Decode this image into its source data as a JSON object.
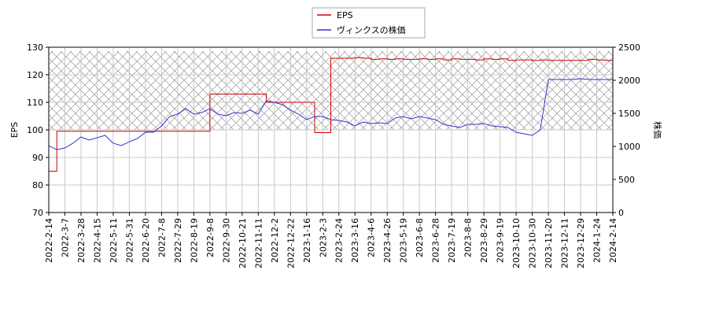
{
  "chart_data": {
    "type": "line",
    "categories": [
      "2022-2-14",
      null,
      "2022-3-7",
      null,
      "2022-3-28",
      null,
      "2022-4-15",
      null,
      "2022-5-11",
      null,
      "2022-5-31",
      null,
      "2022-6-20",
      null,
      "2022-7-8",
      null,
      "2022-7-29",
      null,
      "2022-8-19",
      null,
      "2022-9-8",
      null,
      "2022-9-30",
      null,
      "2022-10-21",
      null,
      "2022-11-11",
      null,
      "2022-12-2",
      null,
      "2022-12-22",
      null,
      "2023-1-16",
      null,
      "2023-2-3",
      null,
      "2023-2-24",
      null,
      "2023-3-16",
      null,
      "2023-4-6",
      null,
      "2023-4-26",
      null,
      "2023-5-19",
      null,
      "2023-6-8",
      null,
      "2023-6-28",
      null,
      "2023-7-19",
      null,
      "2023-8-8",
      null,
      "2023-8-29",
      null,
      "2023-9-19",
      null,
      "2023-10-10",
      null,
      "2023-10-30",
      null,
      "2023-11-20",
      null,
      "2023-12-11",
      null,
      "2023-12-29",
      null,
      "2024-1-24",
      null,
      "2024-2-14"
    ],
    "y_label": "EPS",
    "y2_label": "株価",
    "ylim": [
      70,
      130
    ],
    "yticks": [
      70,
      80,
      90,
      100,
      110,
      120,
      130
    ],
    "y2lim": [
      0,
      2500
    ],
    "y2ticks": [
      0,
      500,
      1000,
      1500,
      2000,
      2500
    ],
    "grid": true,
    "legend": "top",
    "series": [
      {
        "name": "EPS",
        "color": "#cc0000",
        "step": true,
        "values": [
          85,
          99.5,
          99.5,
          99.5,
          99.5,
          99.5,
          99.5,
          99.5,
          99.5,
          99.5,
          99.5,
          99.5,
          99.5,
          99.5,
          99.5,
          99.5,
          99.5,
          99.5,
          99.5,
          99.5,
          113,
          113,
          113,
          113,
          113,
          113,
          113,
          110,
          110,
          110,
          110,
          110,
          110,
          99,
          99,
          126,
          126,
          126,
          126.2,
          126,
          125.6,
          125.8,
          125.6,
          125.8,
          125.6,
          125.6,
          125.8,
          125.6,
          125.8,
          125.4,
          125.8,
          125.6,
          125.6,
          125.4,
          125.8,
          125.6,
          125.8,
          125.2,
          125.4,
          125.4,
          125.2,
          125.4,
          125.2,
          125.2,
          125.2,
          125.2,
          125.2,
          125.6,
          125.4,
          125.2,
          125.2
        ]
      },
      {
        "name": "ヴィンクスの株価",
        "color": "#3333cc",
        "axis": "y2",
        "values": [
          1010,
          952,
          976,
          1048,
          1143,
          1095,
          1131,
          1167,
          1048,
          1012,
          1071,
          1119,
          1214,
          1214,
          1310,
          1452,
          1488,
          1571,
          1488,
          1512,
          1571,
          1488,
          1464,
          1512,
          1500,
          1548,
          1488,
          1690,
          1667,
          1631,
          1548,
          1488,
          1405,
          1452,
          1452,
          1405,
          1393,
          1369,
          1310,
          1369,
          1345,
          1357,
          1345,
          1429,
          1452,
          1417,
          1452,
          1429,
          1405,
          1333,
          1310,
          1286,
          1333,
          1333,
          1345,
          1310,
          1298,
          1286,
          1214,
          1190,
          1167,
          1250,
          2012,
          2012,
          2012,
          2012,
          2024,
          2012,
          2012,
          2012,
          2012
        ]
      }
    ]
  }
}
